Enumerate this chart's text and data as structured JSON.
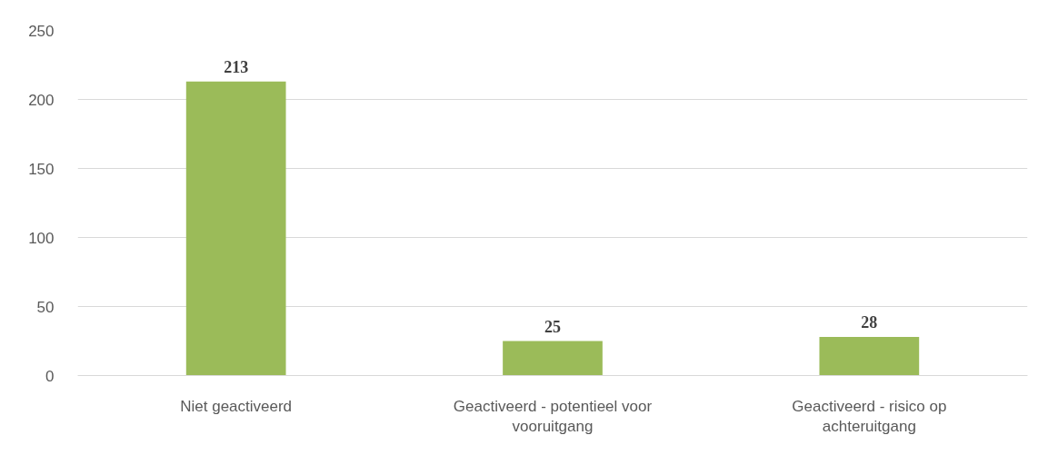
{
  "chart_data": {
    "type": "bar",
    "categories": [
      "Niet geactiveerd",
      "Geactiveerd - potentieel voor vooruitgang",
      "Geactiveerd - risico op achteruitgang"
    ],
    "values": [
      213,
      25,
      28
    ],
    "color": "#9bbb59",
    "ylim": [
      0,
      250
    ],
    "yticks": [
      0,
      50,
      100,
      150,
      200,
      250
    ],
    "grid": "y",
    "data_labels": true
  }
}
